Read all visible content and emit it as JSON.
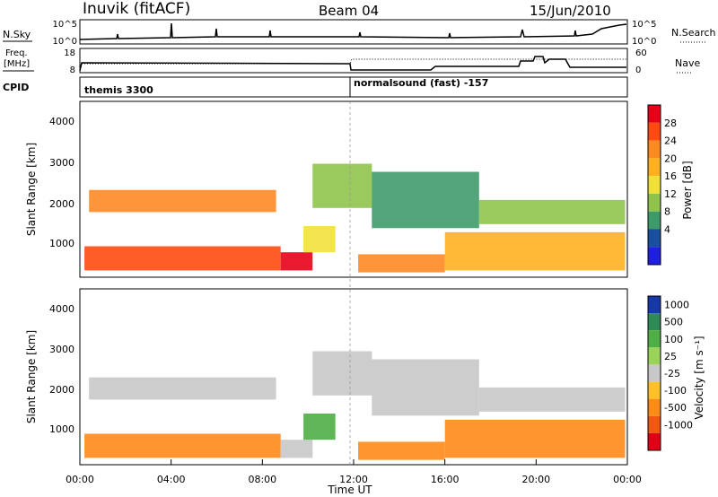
{
  "header": {
    "station": "Inuvik (fitACF)",
    "beam": "Beam 04",
    "date": "15/Jun/2010"
  },
  "panels": {
    "nsky": {
      "left_label": "N.Sky",
      "left_ticks": [
        "10^5",
        "10^0"
      ],
      "right_label": "N.Search",
      "right_ticks": [
        "10^5",
        "10^0"
      ]
    },
    "freq": {
      "left_label_1": "Freq.",
      "left_label_2": "[MHz]",
      "left_ticks": [
        "18",
        "8"
      ],
      "right_label": "Nave",
      "right_ticks": [
        "60",
        "0"
      ]
    },
    "cpid": {
      "label": "CPID",
      "mode_1": "themis 3300",
      "mode_2": "normalsound (fast) -157"
    },
    "power": {
      "ylabel": "Slant Range [km]",
      "yticks": [
        "4000",
        "3000",
        "2000",
        "1000"
      ],
      "cbar_label": "Power [dB]",
      "cbar_ticks": [
        "28",
        "24",
        "20",
        "16",
        "12",
        "8",
        "4"
      ],
      "cbar_colors": [
        "#e8001a",
        "#ff4a10",
        "#ff8a22",
        "#ffb020",
        "#f2e03a",
        "#8fc34c",
        "#3f9a6a",
        "#1a4fa0",
        "#1f1fe0"
      ]
    },
    "velocity": {
      "ylabel": "Slant Range [km]",
      "yticks": [
        "4000",
        "3000",
        "2000",
        "1000"
      ],
      "cbar_label": "Velocity [m s⁻¹]",
      "cbar_ticks": [
        "1000",
        "500",
        "100",
        "25",
        "-25",
        "-100",
        "-500",
        "-1000"
      ],
      "cbar_colors": [
        "#1838a8",
        "#2f8a55",
        "#4fae45",
        "#9ad35a",
        "#c8c8c8",
        "#ffc02a",
        "#ff8a18",
        "#f05a10",
        "#e00018"
      ]
    }
  },
  "xaxis": {
    "ticks": [
      "00:00",
      "04:00",
      "08:00",
      "12:00",
      "16:00",
      "20:00",
      "00:00"
    ],
    "label": "Time UT"
  },
  "colors": {
    "axis": "#000000",
    "scatter_region_power": "#f04a18",
    "scatter_region_velocity": "#c8c8c8"
  },
  "chart_data": {
    "type": "heatmap",
    "x_range_hours": [
      0,
      24
    ],
    "y_range_km": [
      180,
      4550
    ],
    "power_db_range": [
      0,
      30
    ],
    "velocity_range": [
      -1000,
      1000
    ],
    "regions": [
      {
        "t0": 0.2,
        "t1": 8.8,
        "r0": 350,
        "r1": 950,
        "power": 26,
        "velocity": -200
      },
      {
        "t0": 0.4,
        "t1": 8.6,
        "r0": 1800,
        "r1": 2350,
        "power": 21,
        "velocity": 10
      },
      {
        "t0": 8.8,
        "t1": 10.2,
        "r0": 350,
        "r1": 800,
        "power": 28,
        "velocity": 5
      },
      {
        "t0": 9.8,
        "t1": 11.2,
        "r0": 800,
        "r1": 1450,
        "power": 14,
        "velocity": 150
      },
      {
        "t0": 10.2,
        "t1": 12.8,
        "r0": 1900,
        "r1": 3000,
        "power": 12,
        "velocity": 15
      },
      {
        "t0": 12.8,
        "t1": 17.5,
        "r0": 1400,
        "r1": 2800,
        "power": 9,
        "velocity": 10
      },
      {
        "t0": 12.2,
        "t1": 16.0,
        "r0": 300,
        "r1": 750,
        "power": 22,
        "velocity": -300
      },
      {
        "t0": 16.0,
        "t1": 23.9,
        "r0": 350,
        "r1": 1300,
        "power": 19,
        "velocity": -250
      },
      {
        "t0": 17.5,
        "t1": 23.9,
        "r0": 1500,
        "r1": 2100,
        "power": 12,
        "velocity": 0
      }
    ]
  }
}
